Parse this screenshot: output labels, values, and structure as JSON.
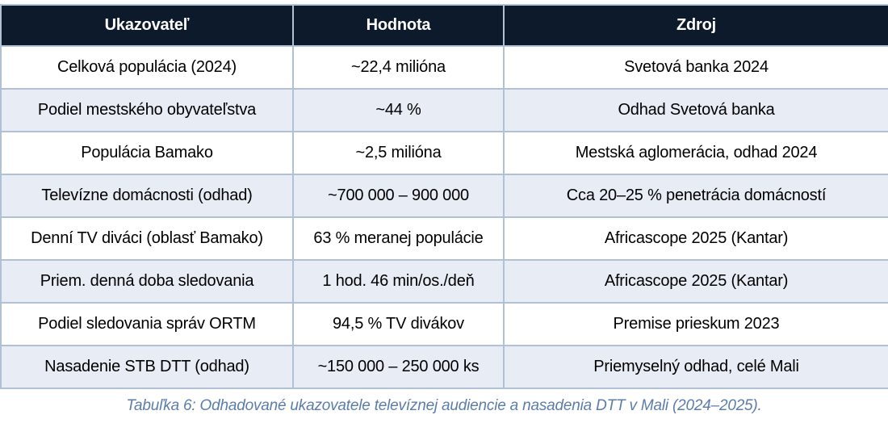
{
  "table": {
    "headers": [
      "Ukazovateľ",
      "Hodnota",
      "Zdroj"
    ],
    "rows": [
      [
        "Celková populácia (2024)",
        "~22,4 milióna",
        "Svetová banka 2024"
      ],
      [
        "Podiel mestského obyvateľstva",
        "~44 %",
        "Odhad Svetová banka"
      ],
      [
        "Populácia Bamako",
        "~2,5 milióna",
        "Mestská aglomerácia, odhad 2024"
      ],
      [
        "Televízne domácnosti (odhad)",
        "~700 000 – 900 000",
        "Cca 20–25 % penetrácia domácností"
      ],
      [
        "Denní TV diváci (oblasť Bamako)",
        "63 % meranej populácie",
        "Africascope 2025 (Kantar)"
      ],
      [
        "Priem. denná doba sledovania",
        "1 hod. 46 min/os./deň",
        "Africascope 2025 (Kantar)"
      ],
      [
        "Podiel sledovania správ ORTM",
        "94,5 % TV divákov",
        "Premise prieskum 2023"
      ],
      [
        "Nasadenie STB DTT (odhad)",
        "~150 000 – 250 000 ks",
        "Priemyselný odhad, celé Mali"
      ]
    ],
    "caption": "Tabuľka 6: Odhadované ukazovatele televíznej audiencie a nasadenia DTT v Mali (2024–2025)."
  },
  "colors": {
    "header_bg": "#0d1a2b",
    "header_text": "#ffffff",
    "row_alt_bg": "#e7ecf5",
    "border": "#b0c1d6",
    "caption_text": "#5b7dab"
  }
}
